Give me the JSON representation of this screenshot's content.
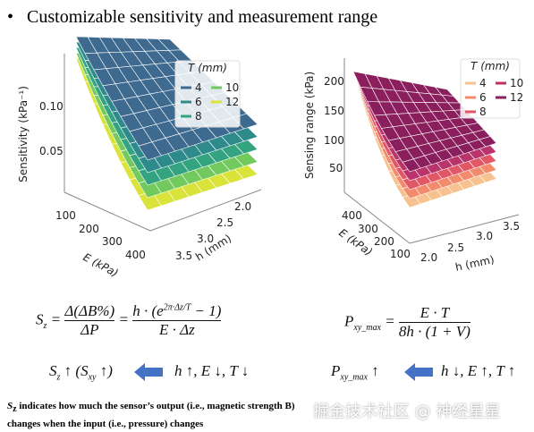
{
  "header": {
    "bullet": "•",
    "title": "Customizable sensitivity and measurement range"
  },
  "left_plot": {
    "ylabel": "Sensitivity (kPa⁻¹)",
    "yticks": [
      "0.10",
      "0.05"
    ],
    "xlabel": "E (kPa)",
    "xticks": [
      "100",
      "200",
      "300",
      "400"
    ],
    "zlabel": "h (mm)",
    "zticks": [
      "2.0",
      "2.5",
      "3.0",
      "3.5"
    ],
    "legend": {
      "title": "T (mm)",
      "entries": [
        {
          "label": "4",
          "color": "#3d6a8e"
        },
        {
          "label": "6",
          "color": "#2f8a8c"
        },
        {
          "label": "8",
          "color": "#34a37f"
        },
        {
          "label": "10",
          "color": "#72c95d"
        },
        {
          "label": "12",
          "color": "#d9e33a"
        }
      ]
    }
  },
  "right_plot": {
    "ylabel": "Sensing range (kPa)",
    "yticks": [
      "200",
      "150",
      "100",
      "50"
    ],
    "xlabel": "E (kPa)",
    "xticks": [
      "400",
      "300",
      "200",
      "100"
    ],
    "zlabel": "h (mm)",
    "zticks": [
      "2.0",
      "2.5",
      "3.0",
      "3.5"
    ],
    "legend": {
      "title": "T (mm)",
      "entries": [
        {
          "label": "4",
          "color": "#f7c290"
        },
        {
          "label": "6",
          "color": "#f28b6c"
        },
        {
          "label": "8",
          "color": "#e25766"
        },
        {
          "label": "10",
          "color": "#b8346b"
        },
        {
          "label": "12",
          "color": "#8b1f5e"
        }
      ]
    }
  },
  "equations": {
    "sz": {
      "lhs": "S",
      "lhs_sub": "z",
      "eq1": "=",
      "num1": "Δ(ΔB%)",
      "den1": "ΔP",
      "eq2": "=",
      "num2a": "h · (e",
      "num2_sup": "2π·Δz/T",
      "num2b": " − 1)",
      "den2": "E · Δz"
    },
    "pxy": {
      "lhs": "P",
      "lhs_sub": "xy_max",
      "eq": "=",
      "num": "E · T",
      "den": "8h · (1 + V)"
    },
    "trend_left": {
      "lhs": "S",
      "lhs_sub": "z",
      "lhs_rest": " ↑ (S",
      "lhs_sub2": "xy",
      "lhs_end": " ↑)",
      "rhs": "h ↑, E ↓, T ↓"
    },
    "trend_right": {
      "lhs": "P",
      "lhs_sub": "xy_max",
      "lhs_rest": " ↑",
      "rhs": "h ↓, E ↑, T ↑"
    }
  },
  "footnote": {
    "symbol": "S",
    "symbol_sub": "z",
    "text": " indicates how much the sensor’s output (i.e., magnetic strength B) changes when the input (i.e., pressure) changes"
  },
  "watermark": "掘金技术社区 @ 神经星星"
}
